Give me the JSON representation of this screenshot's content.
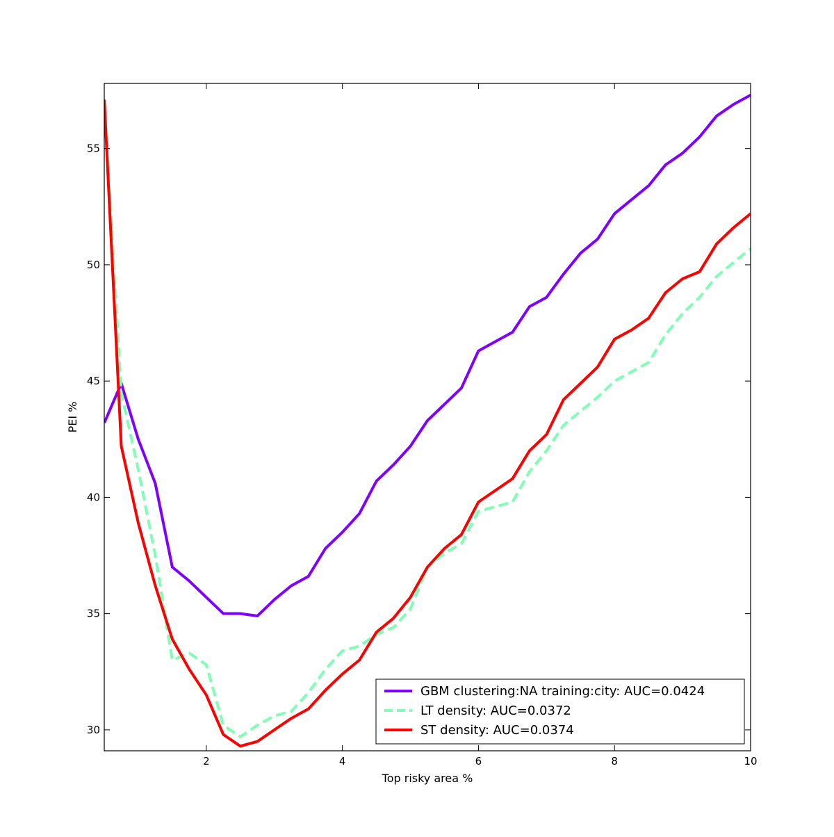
{
  "chart_data": {
    "type": "line",
    "title": "",
    "xlabel": "Top risky area %",
    "ylabel": "PEI %",
    "xlim": [
      0.5,
      10
    ],
    "ylim": [
      29.1,
      57.8
    ],
    "xticks": [
      2,
      4,
      6,
      8,
      10
    ],
    "yticks": [
      30,
      35,
      40,
      45,
      50,
      55
    ],
    "grid": false,
    "legend_position": "lower right",
    "x": [
      0.5,
      0.75,
      1.0,
      1.25,
      1.5,
      1.75,
      2.0,
      2.25,
      2.5,
      2.75,
      3.0,
      3.25,
      3.5,
      3.75,
      4.0,
      4.25,
      4.5,
      4.75,
      5.0,
      5.25,
      5.5,
      5.75,
      6.0,
      6.25,
      6.5,
      6.75,
      7.0,
      7.25,
      7.5,
      7.75,
      8.0,
      8.25,
      8.5,
      8.75,
      9.0,
      9.25,
      9.5,
      9.75,
      10.0
    ],
    "series": [
      {
        "name": "GBM clustering:NA training:city: AUC=0.0424",
        "color": "#7f00ff",
        "dash": "solid",
        "values": [
          43.2,
          44.9,
          42.5,
          40.6,
          37.0,
          36.4,
          35.7,
          35.0,
          35.0,
          34.9,
          35.6,
          36.2,
          36.6,
          37.8,
          38.5,
          39.3,
          40.7,
          41.4,
          42.2,
          43.3,
          44.0,
          44.7,
          46.3,
          46.7,
          47.1,
          48.2,
          48.6,
          49.6,
          50.5,
          51.1,
          52.2,
          52.8,
          53.4,
          54.3,
          54.8,
          55.5,
          56.4,
          56.9,
          57.3
        ]
      },
      {
        "name": "LT density: AUC=0.0372",
        "color": "#80ffb4",
        "dash": "dashed",
        "values": [
          57.1,
          44.5,
          41.2,
          37.5,
          33.0,
          33.3,
          32.8,
          30.2,
          29.7,
          30.2,
          30.6,
          30.8,
          31.6,
          32.6,
          33.4,
          33.6,
          34.1,
          34.4,
          35.2,
          37.0,
          37.6,
          38.0,
          39.4,
          39.6,
          39.8,
          41.1,
          42.0,
          43.1,
          43.7,
          44.3,
          45.0,
          45.4,
          45.8,
          47.0,
          47.9,
          48.6,
          49.5,
          50.1,
          50.7
        ]
      },
      {
        "name": "ST density: AUC=0.0374",
        "color": "#ff0000",
        "dash": "solid",
        "values": [
          57.1,
          42.2,
          38.9,
          36.2,
          33.9,
          32.6,
          31.5,
          29.8,
          29.3,
          29.5,
          30.0,
          30.5,
          30.9,
          31.7,
          32.4,
          33.0,
          34.2,
          34.8,
          35.7,
          37.0,
          37.8,
          38.4,
          39.8,
          40.3,
          40.8,
          42.0,
          42.7,
          44.2,
          44.9,
          45.6,
          46.8,
          47.2,
          47.7,
          48.8,
          49.4,
          49.7,
          50.9,
          51.6,
          52.2
        ]
      }
    ]
  }
}
